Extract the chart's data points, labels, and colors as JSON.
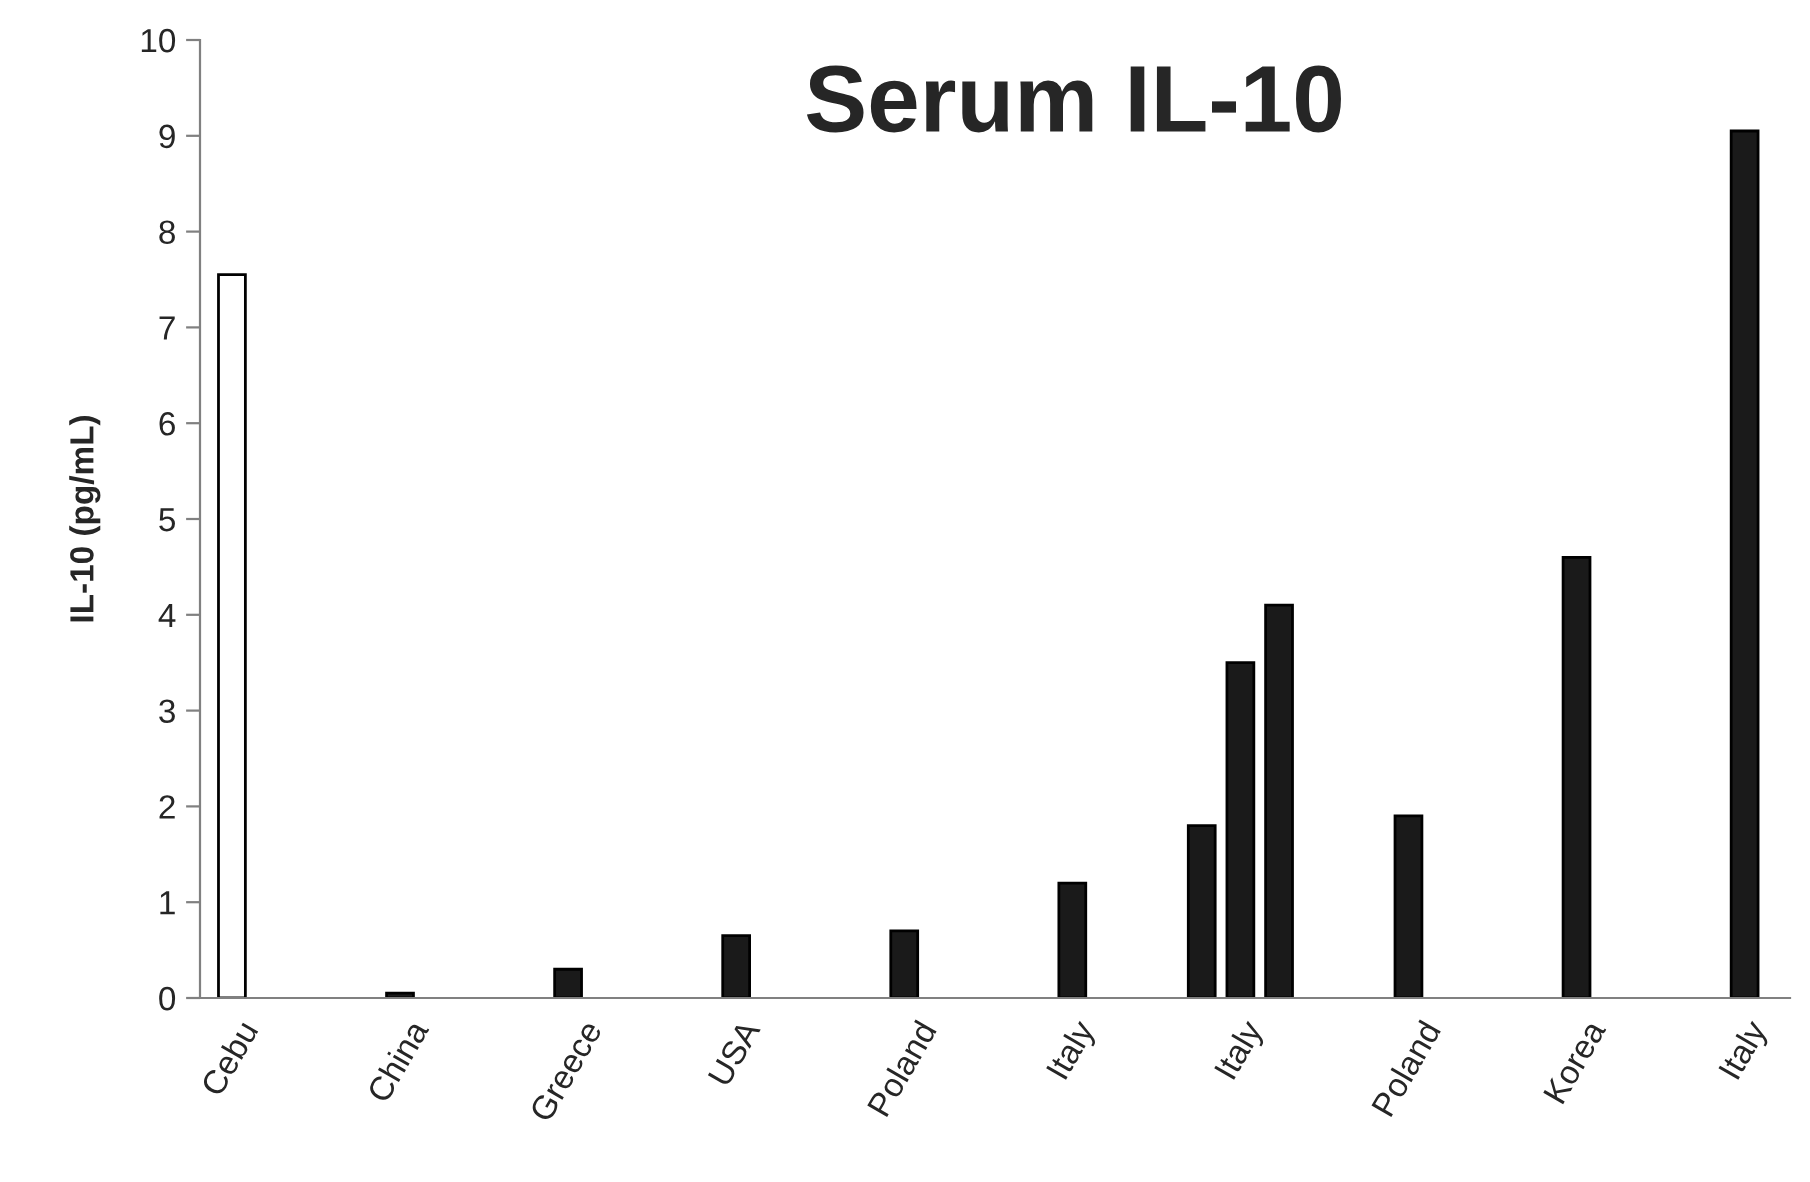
{
  "chart_data": {
    "type": "bar",
    "title": "Serum IL-10",
    "ylabel": "IL-10 (pg/mL)",
    "categories": [
      "Cebu",
      "China",
      "Greece",
      "USA",
      "Poland",
      "Italy",
      "Italy",
      "Poland",
      "Korea",
      "Italy"
    ],
    "series": [
      {
        "color": "#1a1a1a",
        "colors": [
          "#ffffff",
          "#1a1a1a",
          "#1a1a1a",
          "#1a1a1a",
          "#1a1a1a",
          "#1a1a1a",
          "#1a1a1a",
          "#1a1a1a",
          "#1a1a1a",
          "#1a1a1a"
        ],
        "values": [
          7.55,
          0.05,
          0.3,
          0.65,
          0.7,
          1.2,
          1.8,
          1.9,
          4.6,
          9.05
        ]
      },
      {
        "color": "#1a1a1a",
        "values": [
          null,
          null,
          null,
          null,
          null,
          null,
          3.5,
          null,
          null,
          null
        ]
      },
      {
        "color": "#1a1a1a",
        "values": [
          null,
          null,
          null,
          null,
          null,
          null,
          4.1,
          null,
          null,
          null
        ]
      }
    ],
    "ylim": [
      0,
      10
    ],
    "yticks": [
      0,
      1,
      2,
      3,
      4,
      5,
      6,
      7,
      8,
      9,
      10
    ],
    "grid": false,
    "legend": false
  }
}
